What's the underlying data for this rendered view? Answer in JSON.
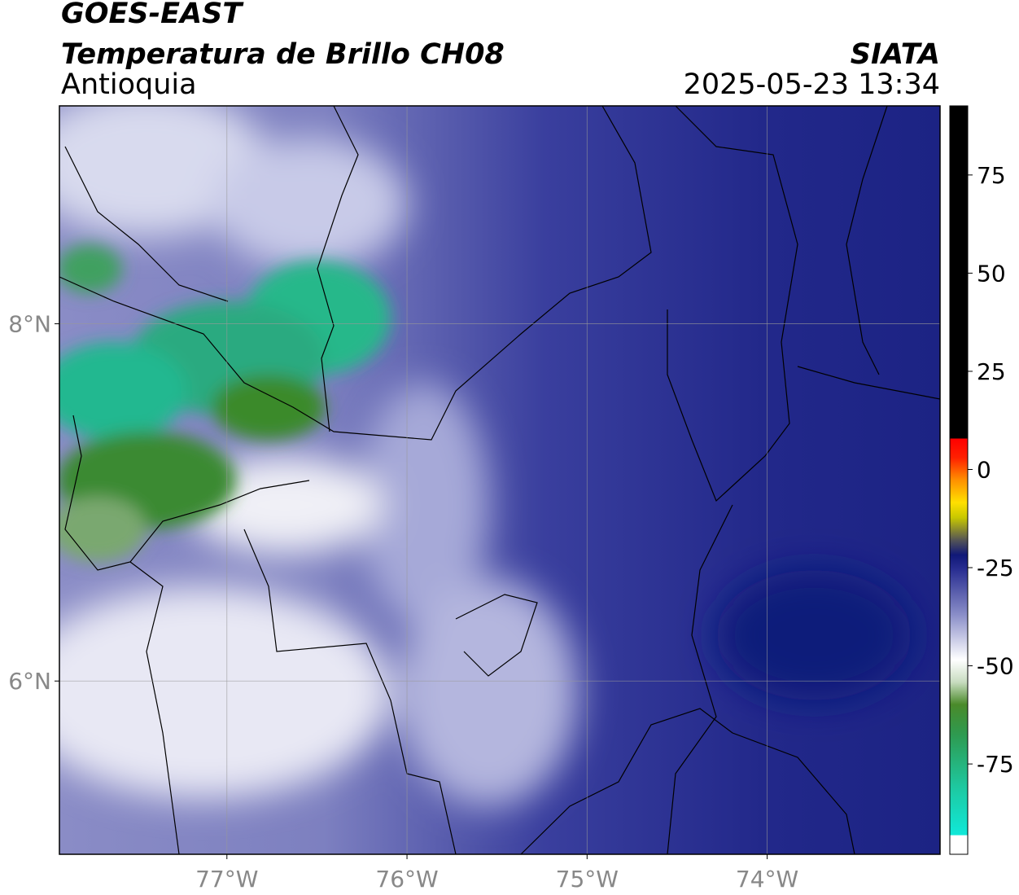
{
  "header": {
    "line1": "GOES-EAST",
    "title": "Temperatura de Brillo CH08",
    "region": "Antioquia",
    "agency": "SIATA",
    "datetime": "2025-05-23 13:34"
  },
  "map": {
    "xlim": [
      -77.93,
      -73.04
    ],
    "ylim": [
      5.03,
      9.22
    ],
    "xticks": [
      {
        "value": -77,
        "label": "77°W"
      },
      {
        "value": -76,
        "label": "76°W"
      },
      {
        "value": -75,
        "label": "75°W"
      },
      {
        "value": -74,
        "label": "74°W"
      }
    ],
    "yticks": [
      {
        "value": 8,
        "label": "8°N"
      },
      {
        "value": 6,
        "label": "6°N"
      }
    ],
    "grid": true
  },
  "colorbar": {
    "lim": [
      -98,
      92.6
    ],
    "ticks": [
      75,
      50,
      25,
      0,
      -25,
      -50,
      -75
    ]
  }
}
